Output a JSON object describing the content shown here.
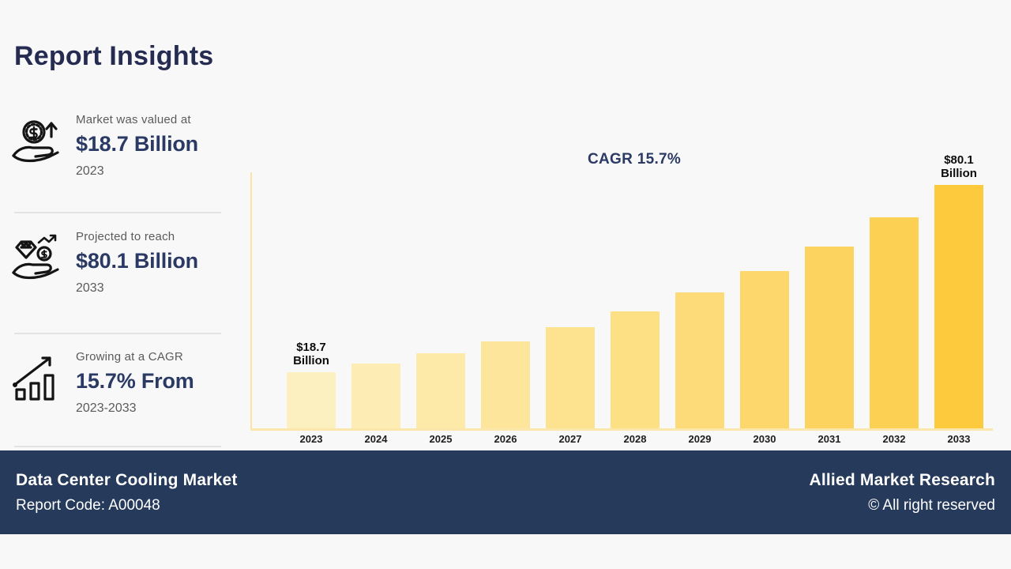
{
  "title": "Report Insights",
  "stats": [
    {
      "icon": "hand-coin-growth-icon",
      "label": "Market was valued at",
      "value": "$18.7 Billion",
      "period": "2023"
    },
    {
      "icon": "hand-wealth-growth-icon",
      "label": "Projected to reach",
      "value": "$80.1 Billion",
      "period": "2033"
    },
    {
      "icon": "growth-bars-arrow-icon",
      "label": "Growing at a CAGR",
      "value": "15.7% From",
      "period": "2023-2033"
    }
  ],
  "chart_data": {
    "type": "bar",
    "title": "CAGR 15.7%",
    "categories": [
      "2023",
      "2024",
      "2025",
      "2026",
      "2027",
      "2028",
      "2029",
      "2030",
      "2031",
      "2032",
      "2033"
    ],
    "values": [
      18.7,
      21.6,
      25.0,
      28.9,
      33.5,
      38.7,
      44.8,
      51.9,
      60.0,
      69.4,
      80.1
    ],
    "xlabel": "",
    "ylabel": "",
    "ylim": [
      0,
      85
    ],
    "grid": false,
    "legend": "none",
    "bar_colors": [
      "#FDF0C0",
      "#FDEDB4",
      "#FDEAA8",
      "#FDE69C",
      "#FDE390",
      "#FDDF84",
      "#FDDB78",
      "#FDD76C",
      "#FDD360",
      "#FCD052",
      "#FCCA3C"
    ],
    "annotations": [
      {
        "index": 0,
        "lines": [
          "$18.7",
          "Billion"
        ]
      },
      {
        "index": 10,
        "lines": [
          "$80.1",
          "Billion"
        ]
      }
    ]
  },
  "footer": {
    "market_name": "Data Center Cooling Market",
    "report_code": "Report Code: A00048",
    "brand": "Allied Market Research",
    "copyright": "© All right reserved"
  },
  "colors": {
    "background": "#F8F8F8",
    "title_navy": "#252B51",
    "value_navy": "#2B3A64",
    "footer_navy": "#263A5C",
    "axis_yellow": "#FAE3A3",
    "divider_gray": "#E3E3E3",
    "label_gray": "#5B5B5B",
    "bar_lightest": "#FDF0C0",
    "bar_darkest": "#FCCA3C"
  }
}
